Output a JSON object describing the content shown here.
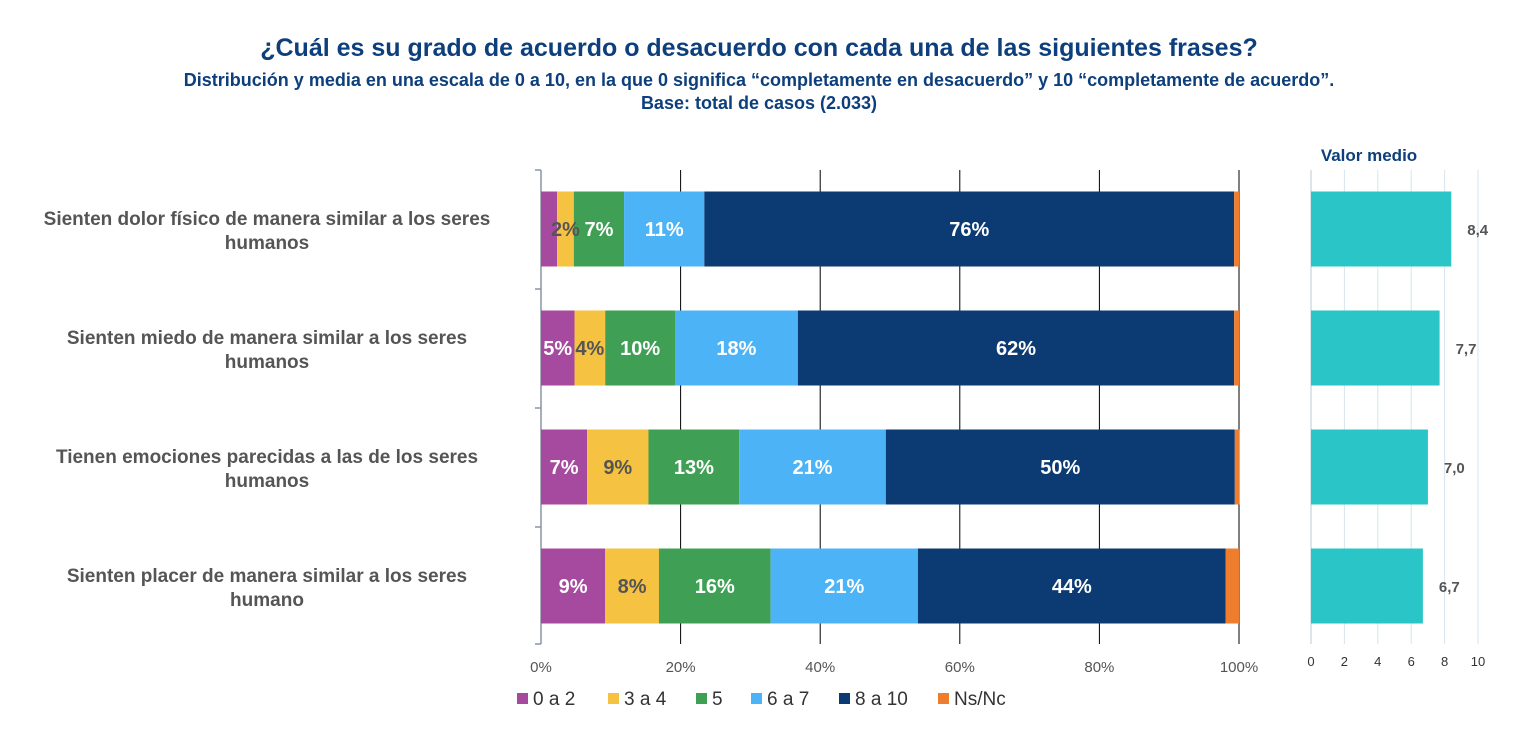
{
  "header": {
    "title": "¿Cuál es su grado de acuerdo o desacuerdo con cada una de las siguientes frases?",
    "subtitle": "Distribución  y media en una escala de 0 a 10, en la que 0 significa “completamente en desacuerdo” y 10 “completamente de acuerdo”.",
    "base": "Base: total de casos (2.033)"
  },
  "chart_data": [
    {
      "type": "bar",
      "orientation": "horizontal",
      "stacked": true,
      "categories": [
        [
          "Sienten dolor físico de manera similar a los seres",
          "humanos"
        ],
        [
          "Sienten miedo de manera similar a los seres",
          "humanos"
        ],
        [
          "Tienen emociones parecidas a las de los seres",
          "humanos"
        ],
        [
          "Sienten placer de manera similar a los seres",
          "humano"
        ]
      ],
      "series": [
        {
          "name": "0 a 2",
          "color": "#a54a9e",
          "values": [
            2.3,
            4.8,
            6.6,
            9.2
          ],
          "labels": [
            "",
            "5%",
            "7%",
            "9%"
          ],
          "label_color": "#ffffff"
        },
        {
          "name": "3 a 4",
          "color": "#f5c242",
          "values": [
            2.4,
            4.4,
            8.8,
            7.7
          ],
          "labels": [
            "2%",
            "4%",
            "9%",
            "8%"
          ],
          "label_color": "#555555"
        },
        {
          "name": "5",
          "color": "#3fa055",
          "values": [
            7.2,
            10.0,
            13.0,
            16.0
          ],
          "labels": [
            "7%",
            "10%",
            "13%",
            "16%"
          ],
          "label_color": "#ffffff"
        },
        {
          "name": "6 a 7",
          "color": "#4db3f7",
          "values": [
            11.5,
            17.6,
            21.0,
            21.1
          ],
          "labels": [
            "11%",
            "18%",
            "21%",
            "21%"
          ],
          "label_color": "#ffffff"
        },
        {
          "name": "8 a 10",
          "color": "#0c3b73",
          "values": [
            75.9,
            62.5,
            50.0,
            44.1
          ],
          "labels": [
            "76%",
            "62%",
            "50%",
            "44%"
          ],
          "label_color": "#ffffff"
        },
        {
          "name": "Ns/Nc",
          "color": "#ef7d2e",
          "values": [
            0.7,
            0.7,
            0.7,
            1.9
          ],
          "labels": [
            "",
            "",
            "",
            ""
          ],
          "label_color": "#ffffff"
        }
      ],
      "xlim": [
        0,
        100
      ],
      "xticks": [
        "0%",
        "20%",
        "40%",
        "60%",
        "80%",
        "100%"
      ],
      "grid": true,
      "legend_position": "bottom"
    },
    {
      "type": "bar",
      "orientation": "horizontal",
      "title": "Valor medio",
      "values": [
        8.4,
        7.7,
        7.0,
        6.7
      ],
      "value_labels": [
        "8,4",
        "7,7",
        "7,0",
        "6,7"
      ],
      "color": "#29c5c7",
      "xlim": [
        0,
        10
      ],
      "xticks": [
        "0",
        "2",
        "4",
        "6",
        "8",
        "10"
      ],
      "grid": true
    }
  ]
}
